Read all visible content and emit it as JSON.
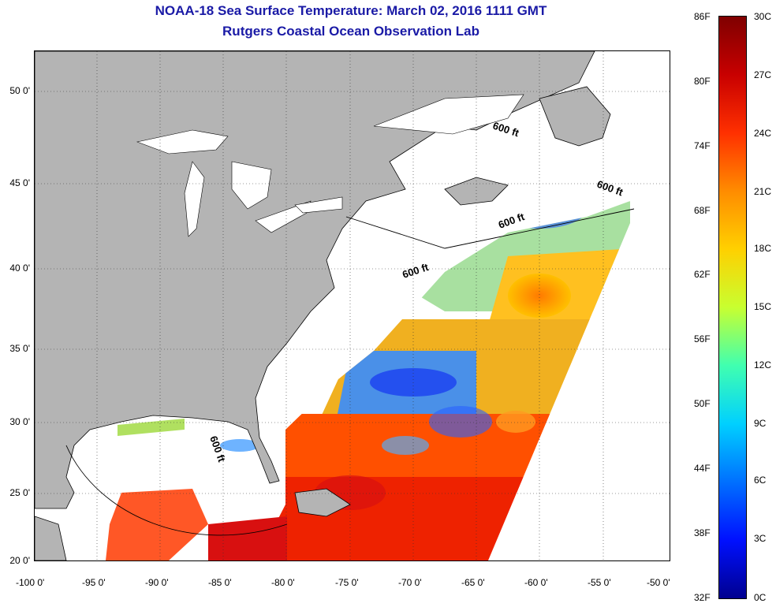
{
  "title": {
    "line1": "NOAA-18 Sea Surface Temperature:  March 02, 2016 1111 GMT",
    "line2": "Rutgers Coastal Ocean Observation Lab"
  },
  "map": {
    "lat_labels": [
      "50 0'",
      "45 0'",
      "40 0'",
      "35 0'",
      "30 0'",
      "25 0'",
      "20 0'"
    ],
    "lon_labels": [
      "-100 0'",
      "-95 0'",
      "-90 0'",
      "-85 0'",
      "-80 0'",
      "-75 0'",
      "-70 0'",
      "-65 0'",
      "-60 0'",
      "-55 0'",
      "-50 0'"
    ],
    "isobath_labels": [
      "600 ft",
      "600 ft",
      "600 ft",
      "600 ft",
      "600 ft"
    ],
    "land_color": "#b4b4b4",
    "nodata_color": "#ffffff"
  },
  "colorbar": {
    "f_labels": [
      "86F",
      "80F",
      "74F",
      "68F",
      "62F",
      "56F",
      "50F",
      "44F",
      "38F",
      "32F"
    ],
    "c_labels": [
      "30C",
      "27C",
      "24C",
      "21C",
      "18C",
      "15C",
      "12C",
      "9C",
      "6C",
      "3C",
      "0C"
    ],
    "colors": [
      "#7f0000",
      "#c80000",
      "#ff3000",
      "#ff8c00",
      "#ffd000",
      "#c8ff30",
      "#40ffb0",
      "#00d0ff",
      "#0070ff",
      "#0010ff",
      "#00008f"
    ]
  }
}
